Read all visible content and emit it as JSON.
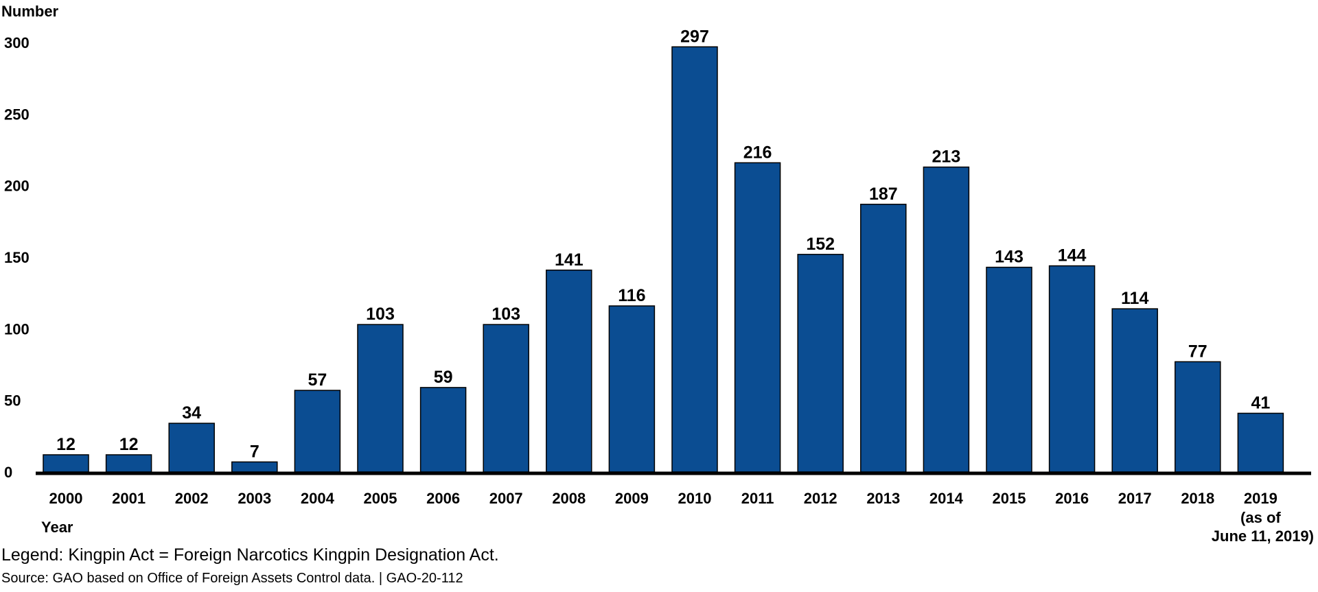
{
  "chart_data": {
    "type": "bar",
    "ylabel": "Number",
    "xlabel": "Year",
    "ylim": [
      0,
      300
    ],
    "yticks": [
      0,
      50,
      100,
      150,
      200,
      250,
      300
    ],
    "grid": false,
    "categories": [
      "2000",
      "2001",
      "2002",
      "2003",
      "2004",
      "2005",
      "2006",
      "2007",
      "2008",
      "2009",
      "2010",
      "2011",
      "2012",
      "2013",
      "2014",
      "2015",
      "2016",
      "2017",
      "2018",
      "2019"
    ],
    "category_sublabels": {
      "2019": [
        "(as of",
        "June 11, 2019)"
      ]
    },
    "values": [
      12,
      12,
      34,
      7,
      57,
      103,
      59,
      103,
      141,
      116,
      297,
      216,
      152,
      187,
      213,
      143,
      144,
      114,
      77,
      41
    ],
    "bar_color": "#0b4d92"
  },
  "notes": {
    "legend": "Legend: Kingpin Act = Foreign Narcotics Kingpin Designation Act.",
    "source": "Source: GAO based on Office of Foreign Assets Control data.  |  GAO-20-112"
  }
}
